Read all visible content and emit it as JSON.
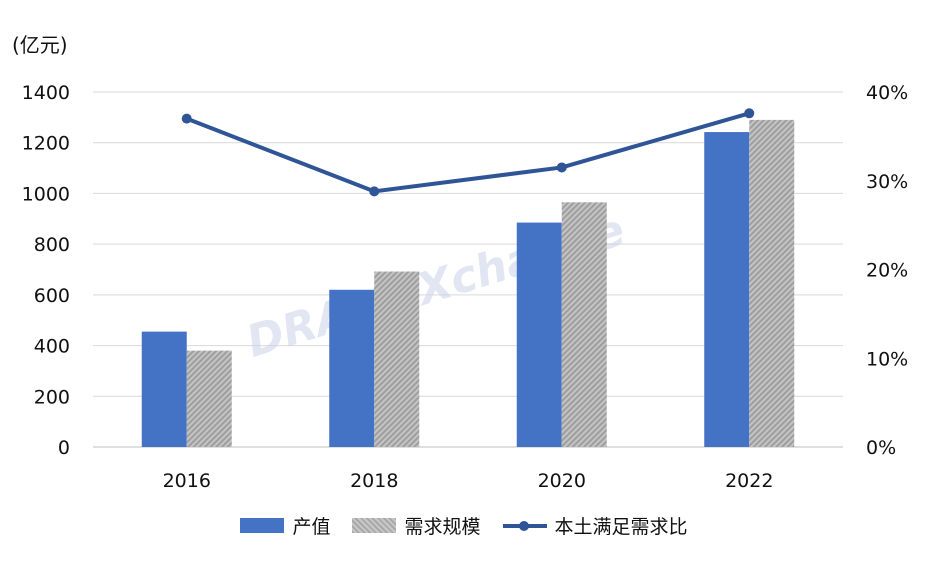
{
  "chart_data": {
    "type": "bar",
    "categories": [
      "2016",
      "2018",
      "2020",
      "2022"
    ],
    "y_unit_label": "(亿元)",
    "ylim": [
      0,
      1400
    ],
    "yticks": [
      "0",
      "200",
      "400",
      "600",
      "800",
      "1000",
      "1200",
      "1400"
    ],
    "y2lim": [
      0,
      0.4
    ],
    "y2ticks": [
      "0%",
      "10%",
      "20%",
      "30%",
      "40%"
    ],
    "grid": true,
    "legend_position": "bottom",
    "series": [
      {
        "name": "产值",
        "type": "bar",
        "axis": "left",
        "color": "#4472c4",
        "values": [
          455,
          620,
          885,
          1242
        ]
      },
      {
        "name": "需求规模",
        "type": "bar",
        "axis": "left",
        "color": "#a6a6a6",
        "values": [
          380,
          692,
          965,
          1290
        ]
      },
      {
        "name": "本土满足需求比",
        "type": "line",
        "axis": "right",
        "color": "#2f5597",
        "values": [
          0.37,
          0.288,
          0.315,
          0.376
        ]
      }
    ],
    "watermark": "DRAMeXchange"
  }
}
